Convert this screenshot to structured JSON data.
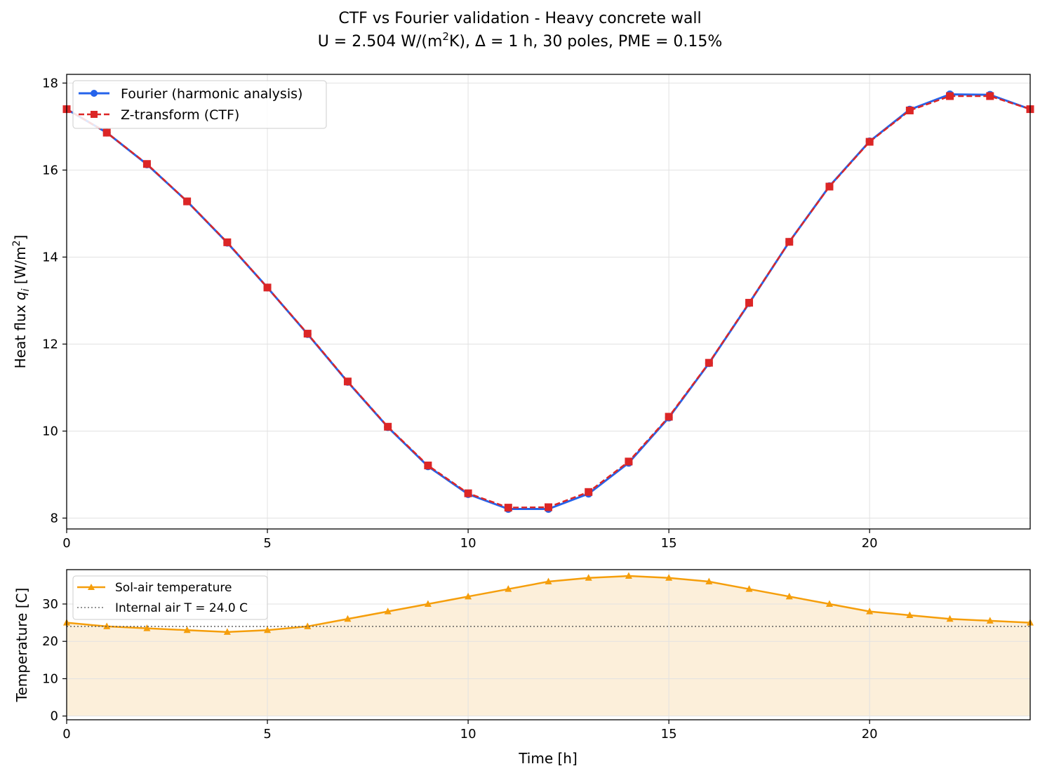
{
  "figure": {
    "title_line1": "CTF vs Fourier validation - Heavy concrete wall",
    "title_line2_a": "U = 2.504 W/(m",
    "title_line2_sup": "2",
    "title_line2_b": "K), Δ = 1 h, 30 poles, PME = 0.15%"
  },
  "chart_data": [
    {
      "type": "line",
      "ylabel_a": "Heat flux ",
      "ylabel_q": "q",
      "ylabel_sub": "i",
      "ylabel_b": " [W/m",
      "ylabel_sup": "2",
      "ylabel_c": "]",
      "xlim": [
        0,
        24
      ],
      "ylim": [
        7.75,
        18.2
      ],
      "xticks": [
        0,
        5,
        10,
        15,
        20
      ],
      "yticks": [
        8,
        10,
        12,
        14,
        16,
        18
      ],
      "grid": true,
      "legend_position": "top-left",
      "x": [
        0,
        1,
        2,
        3,
        4,
        5,
        6,
        7,
        8,
        9,
        10,
        11,
        12,
        13,
        14,
        15,
        16,
        17,
        18,
        19,
        20,
        21,
        22,
        23,
        24
      ],
      "series": [
        {
          "name": "Fourier (harmonic analysis)",
          "color": "#2563eb",
          "style": "solid",
          "marker": "circle",
          "values": [
            17.4,
            16.86,
            16.13,
            15.28,
            14.33,
            13.3,
            12.23,
            11.13,
            10.09,
            9.19,
            8.55,
            8.21,
            8.21,
            8.56,
            9.27,
            10.31,
            11.56,
            12.94,
            14.35,
            15.63,
            16.66,
            17.39,
            17.74,
            17.73,
            17.4
          ]
        },
        {
          "name": "Z-transform (CTF)",
          "color": "#dc2626",
          "style": "dashed",
          "marker": "square",
          "values": [
            17.4,
            16.86,
            16.14,
            15.28,
            14.34,
            13.3,
            12.24,
            11.14,
            10.1,
            9.21,
            8.57,
            8.24,
            8.25,
            8.6,
            9.3,
            10.33,
            11.57,
            12.95,
            14.35,
            15.62,
            16.65,
            17.37,
            17.7,
            17.7,
            17.4
          ]
        }
      ]
    },
    {
      "type": "area",
      "xlabel": "Time [h]",
      "ylabel": "Temperature [C]",
      "xlim": [
        0,
        24
      ],
      "ylim": [
        -1.0,
        39.2
      ],
      "xticks": [
        0,
        5,
        10,
        15,
        20
      ],
      "yticks": [
        0,
        10,
        20,
        30
      ],
      "grid": true,
      "legend_position": "top-left",
      "x": [
        0,
        1,
        2,
        3,
        4,
        5,
        6,
        7,
        8,
        9,
        10,
        11,
        12,
        13,
        14,
        15,
        16,
        17,
        18,
        19,
        20,
        21,
        22,
        23,
        24
      ],
      "series": [
        {
          "name": "Sol-air temperature",
          "color": "#f59e0b",
          "fill_color": "#fcefda",
          "style": "solid",
          "marker": "triangle",
          "values": [
            25.0,
            24.0,
            23.5,
            23.0,
            22.5,
            23.0,
            24.0,
            26.0,
            28.0,
            30.0,
            32.0,
            34.0,
            36.0,
            37.0,
            37.5,
            37.0,
            36.0,
            34.0,
            32.0,
            30.0,
            28.0,
            27.0,
            26.0,
            25.5,
            25.0
          ]
        },
        {
          "name": "Internal air T = 24.0 C",
          "color": "#555555",
          "style": "dotted",
          "constant": 24.0
        }
      ]
    }
  ]
}
